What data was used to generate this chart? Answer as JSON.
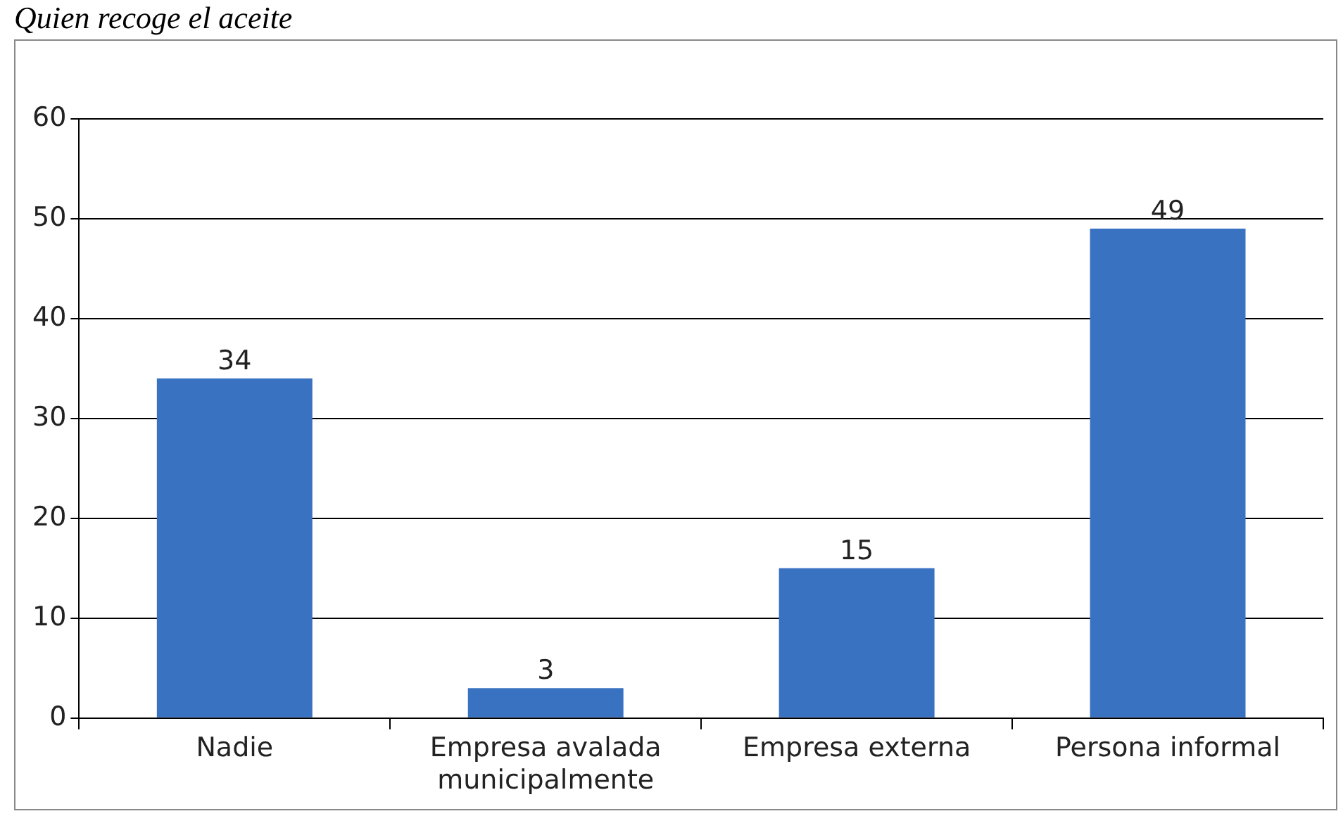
{
  "chart_data": {
    "type": "bar",
    "title": "Quien recoge el aceite",
    "categories": [
      "Nadie",
      [
        "Empresa avalada",
        "municipalmente"
      ],
      "Empresa externa",
      "Persona informal"
    ],
    "values": [
      34,
      3,
      15,
      49
    ],
    "color": "#3a72c2",
    "ylim": [
      0,
      60
    ],
    "yticks": [
      0,
      10,
      20,
      30,
      40,
      50,
      60
    ],
    "grid": "y",
    "data_labels": true
  }
}
